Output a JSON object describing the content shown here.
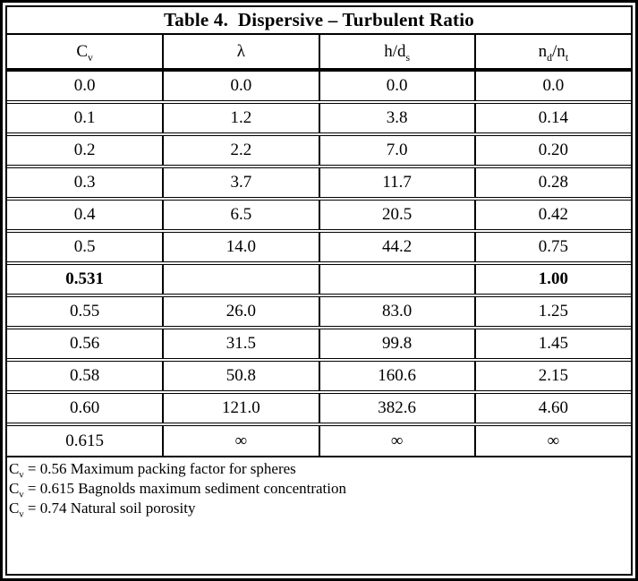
{
  "title": "Table 4.  Dispersive – Turbulent Ratio",
  "columns": [
    {
      "base": "C",
      "sub": "v"
    },
    {
      "base": "λ",
      "sub": ""
    },
    {
      "base": "h/d",
      "sub": "s"
    },
    {
      "base": "n",
      "sub": "d",
      "base2": "/n",
      "sub2": "t"
    }
  ],
  "rows": [
    {
      "c0": "0.0",
      "c1": "0.0",
      "c2": "0.0",
      "c3": "0.0"
    },
    {
      "c0": "0.1",
      "c1": "1.2",
      "c2": "3.8",
      "c3": "0.14"
    },
    {
      "c0": "0.2",
      "c1": "2.2",
      "c2": "7.0",
      "c3": "0.20"
    },
    {
      "c0": "0.3",
      "c1": "3.7",
      "c2": "11.7",
      "c3": "0.28"
    },
    {
      "c0": "0.4",
      "c1": "6.5",
      "c2": "20.5",
      "c3": "0.42"
    },
    {
      "c0": "0.5",
      "c1": "14.0",
      "c2": "44.2",
      "c3": "0.75"
    },
    {
      "c0": "0.531",
      "c1": "",
      "c2": "",
      "c3": "1.00"
    },
    {
      "c0": "0.55",
      "c1": "26.0",
      "c2": "83.0",
      "c3": "1.25"
    },
    {
      "c0": "0.56",
      "c1": "31.5",
      "c2": "99.8",
      "c3": "1.45"
    },
    {
      "c0": "0.58",
      "c1": "50.8",
      "c2": "160.6",
      "c3": "2.15"
    },
    {
      "c0": "0.60",
      "c1": "121.0",
      "c2": "382.6",
      "c3": "4.60"
    },
    {
      "c0": "0.615",
      "c1": "∞",
      "c2": "∞",
      "c3": "∞"
    }
  ],
  "footnotes": [
    {
      "base": "C",
      "sub": "v",
      "text": " = 0.56 Maximum packing factor for spheres"
    },
    {
      "base": "C",
      "sub": "v",
      "text": " = 0.615 Bagnolds maximum sediment concentration"
    },
    {
      "base": "C",
      "sub": "v",
      "text": " = 0.74 Natural soil porosity"
    }
  ],
  "colors": {
    "border": "#000000",
    "background": "#ffffff",
    "text": "#000000"
  }
}
